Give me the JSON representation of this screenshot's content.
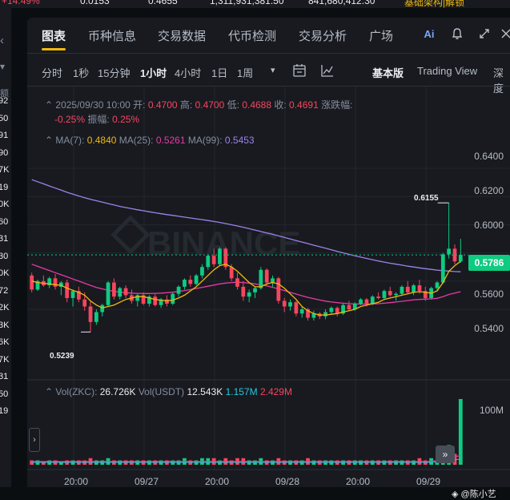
{
  "top_strip": {
    "a": "+14.49%",
    "b": "0.0153",
    "c": "0.4655",
    "d": "1,311,931,381.50",
    "e": "841,680,412.30",
    "f": "基础架构|解锁"
  },
  "left_panel": {
    "header": "额",
    "values": [
      "92",
      "50",
      "91",
      "90",
      "7K",
      "19",
      "0K",
      "60",
      "31",
      "30",
      "0K",
      "72",
      "2K",
      "3K",
      "6K",
      "7K",
      "31",
      "50",
      "19"
    ]
  },
  "tabs": [
    {
      "label": "图表",
      "active": true
    },
    {
      "label": "币种信息"
    },
    {
      "label": "交易数据"
    },
    {
      "label": "代币检测"
    },
    {
      "label": "交易分析"
    },
    {
      "label": "广场"
    }
  ],
  "header_icons": {
    "ai": "ai-icon",
    "bell": "bell-icon",
    "expand": "expand-icon",
    "close": "close-icon"
  },
  "timeframes": [
    "分时",
    "1秒",
    "15分钟",
    "1小时",
    "4小时",
    "1日",
    "1周"
  ],
  "active_timeframe": "1小时",
  "toolbar": {
    "more": "▾",
    "basic": "基本版",
    "tradingview": "Trading View",
    "depth": "深度"
  },
  "ohlc": {
    "date": "2025/09/30 10:00",
    "open_label": "开:",
    "open": "0.4700",
    "high_label": "高:",
    "high": "0.4700",
    "low_label": "低:",
    "low": "0.4688",
    "close_label": "收:",
    "close": "0.4691",
    "change_label": "涨跌幅:",
    "change": "-0.25%",
    "amplitude_label": "振幅:",
    "amplitude": "0.25%"
  },
  "ma": {
    "ma7_label": "MA(7):",
    "ma7": "0.4840",
    "ma25_label": "MA(25):",
    "ma25": "0.5261",
    "ma99_label": "MA(99):",
    "ma99": "0.5453"
  },
  "volume": {
    "zkc_label": "Vol(ZKC):",
    "zkc": "26.726K",
    "usdt_label": "Vol(USDT)",
    "usdt": "12.543K",
    "v1": "1.157M",
    "v2": "2.429M",
    "axis": "100M"
  },
  "chart_data": {
    "type": "candlestick",
    "y_ticks": [
      "0.6400",
      "0.6200",
      "0.6000",
      "0.5800",
      "0.5600",
      "0.5400"
    ],
    "ylim": [
      0.515,
      0.648
    ],
    "x_ticks": [
      "20:00",
      "09/27",
      "20:00",
      "09/28",
      "20:00",
      "09/29"
    ],
    "current_price": "0.5786",
    "high_annotation": "0.6155",
    "low_annotation": "0.5239",
    "candles": [
      [
        0.564,
        0.566,
        0.552,
        0.554
      ],
      [
        0.554,
        0.561,
        0.553,
        0.56
      ],
      [
        0.56,
        0.564,
        0.556,
        0.557
      ],
      [
        0.557,
        0.563,
        0.555,
        0.562
      ],
      [
        0.562,
        0.565,
        0.554,
        0.556
      ],
      [
        0.556,
        0.56,
        0.55,
        0.559
      ],
      [
        0.559,
        0.561,
        0.545,
        0.548
      ],
      [
        0.548,
        0.554,
        0.542,
        0.553
      ],
      [
        0.553,
        0.556,
        0.545,
        0.547
      ],
      [
        0.547,
        0.552,
        0.539,
        0.542
      ],
      [
        0.542,
        0.546,
        0.5239,
        0.531
      ],
      [
        0.531,
        0.54,
        0.529,
        0.538
      ],
      [
        0.538,
        0.544,
        0.535,
        0.543
      ],
      [
        0.543,
        0.56,
        0.542,
        0.559
      ],
      [
        0.559,
        0.562,
        0.547,
        0.549
      ],
      [
        0.549,
        0.556,
        0.547,
        0.555
      ],
      [
        0.555,
        0.557,
        0.548,
        0.55
      ],
      [
        0.55,
        0.554,
        0.544,
        0.546
      ],
      [
        0.546,
        0.551,
        0.542,
        0.55
      ],
      [
        0.55,
        0.552,
        0.543,
        0.544
      ],
      [
        0.544,
        0.55,
        0.542,
        0.549
      ],
      [
        0.549,
        0.551,
        0.542,
        0.543
      ],
      [
        0.543,
        0.548,
        0.541,
        0.547
      ],
      [
        0.547,
        0.55,
        0.542,
        0.544
      ],
      [
        0.544,
        0.552,
        0.543,
        0.551
      ],
      [
        0.551,
        0.557,
        0.549,
        0.556
      ],
      [
        0.556,
        0.562,
        0.554,
        0.561
      ],
      [
        0.561,
        0.564,
        0.556,
        0.558
      ],
      [
        0.558,
        0.565,
        0.557,
        0.564
      ],
      [
        0.564,
        0.572,
        0.562,
        0.57
      ],
      [
        0.57,
        0.579,
        0.568,
        0.578
      ],
      [
        0.578,
        0.583,
        0.57,
        0.572
      ],
      [
        0.572,
        0.584,
        0.571,
        0.583
      ],
      [
        0.583,
        0.584,
        0.568,
        0.57
      ],
      [
        0.57,
        0.572,
        0.56,
        0.562
      ],
      [
        0.562,
        0.566,
        0.554,
        0.556
      ],
      [
        0.556,
        0.56,
        0.546,
        0.549
      ],
      [
        0.549,
        0.554,
        0.545,
        0.552
      ],
      [
        0.552,
        0.556,
        0.548,
        0.555
      ],
      [
        0.555,
        0.57,
        0.554,
        0.568
      ],
      [
        0.568,
        0.569,
        0.557,
        0.559
      ],
      [
        0.559,
        0.564,
        0.556,
        0.562
      ],
      [
        0.562,
        0.563,
        0.544,
        0.546
      ],
      [
        0.546,
        0.548,
        0.538,
        0.542
      ],
      [
        0.542,
        0.547,
        0.539,
        0.545
      ],
      [
        0.545,
        0.546,
        0.535,
        0.537
      ],
      [
        0.537,
        0.542,
        0.534,
        0.54
      ],
      [
        0.54,
        0.541,
        0.532,
        0.534
      ],
      [
        0.534,
        0.539,
        0.532,
        0.537
      ],
      [
        0.537,
        0.538,
        0.533,
        0.535
      ],
      [
        0.535,
        0.54,
        0.533,
        0.538
      ],
      [
        0.538,
        0.542,
        0.536,
        0.541
      ],
      [
        0.541,
        0.542,
        0.535,
        0.537
      ],
      [
        0.537,
        0.544,
        0.536,
        0.543
      ],
      [
        0.543,
        0.546,
        0.539,
        0.54
      ],
      [
        0.54,
        0.545,
        0.539,
        0.544
      ],
      [
        0.544,
        0.548,
        0.543,
        0.547
      ],
      [
        0.547,
        0.548,
        0.542,
        0.544
      ],
      [
        0.544,
        0.55,
        0.543,
        0.549
      ],
      [
        0.549,
        0.552,
        0.547,
        0.548
      ],
      [
        0.548,
        0.554,
        0.547,
        0.553
      ],
      [
        0.553,
        0.556,
        0.549,
        0.55
      ],
      [
        0.55,
        0.552,
        0.546,
        0.551
      ],
      [
        0.551,
        0.557,
        0.55,
        0.556
      ],
      [
        0.556,
        0.56,
        0.551,
        0.552
      ],
      [
        0.552,
        0.558,
        0.55,
        0.557
      ],
      [
        0.557,
        0.561,
        0.551,
        0.553
      ],
      [
        0.553,
        0.556,
        0.546,
        0.548
      ],
      [
        0.548,
        0.556,
        0.547,
        0.555
      ],
      [
        0.555,
        0.56,
        0.553,
        0.559
      ],
      [
        0.559,
        0.58,
        0.558,
        0.579
      ],
      [
        0.579,
        0.6155,
        0.576,
        0.583
      ],
      [
        0.583,
        0.586,
        0.572,
        0.574
      ],
      [
        0.574,
        0.59,
        0.573,
        0.5786
      ]
    ],
    "ma7": [
      0.56,
      0.559,
      0.5585,
      0.558,
      0.5575,
      0.557,
      0.555,
      0.5535,
      0.552,
      0.55,
      0.546,
      0.543,
      0.541,
      0.542,
      0.543,
      0.545,
      0.547,
      0.548,
      0.549,
      0.549,
      0.548,
      0.547,
      0.5465,
      0.546,
      0.5465,
      0.548,
      0.55,
      0.553,
      0.556,
      0.56,
      0.564,
      0.568,
      0.571,
      0.572,
      0.57,
      0.567,
      0.563,
      0.559,
      0.556,
      0.556,
      0.558,
      0.559,
      0.558,
      0.555,
      0.551,
      0.547,
      0.542,
      0.539,
      0.537,
      0.536,
      0.536,
      0.5365,
      0.537,
      0.538,
      0.539,
      0.54,
      0.542,
      0.543,
      0.544,
      0.545,
      0.547,
      0.548,
      0.549,
      0.55,
      0.551,
      0.552,
      0.5525,
      0.552,
      0.5515,
      0.553,
      0.559,
      0.567,
      0.571,
      0.574
    ],
    "ma25": [
      0.572,
      0.5705,
      0.569,
      0.5675,
      0.566,
      0.5645,
      0.563,
      0.5615,
      0.56,
      0.5585,
      0.557,
      0.5555,
      0.5545,
      0.5535,
      0.5528,
      0.5522,
      0.5518,
      0.5515,
      0.5513,
      0.5512,
      0.5512,
      0.5513,
      0.5515,
      0.5518,
      0.5522,
      0.5527,
      0.5533,
      0.554,
      0.5548,
      0.5556,
      0.5564,
      0.5572,
      0.558,
      0.5586,
      0.559,
      0.5592,
      0.559,
      0.5586,
      0.558,
      0.5574,
      0.5566,
      0.5556,
      0.5545,
      0.5533,
      0.552,
      0.5508,
      0.5496,
      0.5485,
      0.5475,
      0.5466,
      0.5458,
      0.5452,
      0.5447,
      0.5443,
      0.544,
      0.5438,
      0.5437,
      0.5437,
      0.5438,
      0.544,
      0.5443,
      0.5447,
      0.5452,
      0.5457,
      0.5462,
      0.5467,
      0.547,
      0.5472,
      0.5474,
      0.5478,
      0.549,
      0.5505,
      0.5515,
      0.5525
    ],
    "ma99": [
      0.632,
      0.6305,
      0.629,
      0.6275,
      0.626,
      0.6245,
      0.623,
      0.6217,
      0.6204,
      0.6192,
      0.618,
      0.617,
      0.616,
      0.615,
      0.614,
      0.613,
      0.6122,
      0.6114,
      0.6106,
      0.6099,
      0.6092,
      0.6085,
      0.6078,
      0.6072,
      0.6066,
      0.606,
      0.6054,
      0.6048,
      0.6042,
      0.6036,
      0.603,
      0.6023,
      0.6016,
      0.6008,
      0.6,
      0.5991,
      0.5982,
      0.5972,
      0.5962,
      0.5952,
      0.5942,
      0.5932,
      0.5921,
      0.591,
      0.5899,
      0.5888,
      0.5877,
      0.5866,
      0.5855,
      0.5844,
      0.5833,
      0.5822,
      0.5811,
      0.58,
      0.579,
      0.578,
      0.577,
      0.5761,
      0.5752,
      0.5743,
      0.5735,
      0.5727,
      0.572,
      0.5713,
      0.5706,
      0.57,
      0.5694,
      0.5688,
      0.5683,
      0.5678,
      0.5674,
      0.5671,
      0.5668,
      0.5666
    ],
    "volumes": [
      2,
      2,
      1,
      2,
      2,
      1,
      2,
      2,
      2,
      2,
      3,
      2,
      2,
      3,
      2,
      2,
      2,
      2,
      2,
      2,
      2,
      2,
      2,
      2,
      2,
      2,
      3,
      2,
      2,
      3,
      3,
      3,
      2,
      3,
      2,
      3,
      3,
      2,
      2,
      3,
      2,
      2,
      3,
      2,
      2,
      2,
      2,
      3,
      2,
      2,
      2,
      2,
      2,
      2,
      2,
      2,
      2,
      2,
      2,
      2,
      2,
      2,
      2,
      2,
      2,
      2,
      3,
      2,
      3,
      2,
      4,
      9,
      5,
      30
    ]
  },
  "watermark": "@陈小艺",
  "watermark_icon": "diamond-icon",
  "colors": {
    "up": "#0ecb81",
    "down": "#f6465d",
    "ma7": "#f0b90b",
    "ma25": "#e63ba2",
    "ma99": "#9d82ea",
    "bg": "#181a20",
    "grid": "#2b3139"
  }
}
